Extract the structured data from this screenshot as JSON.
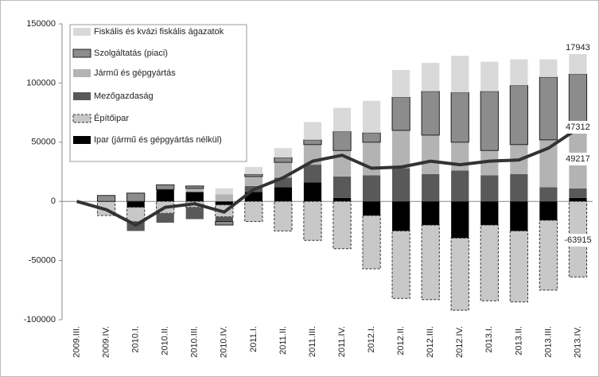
{
  "chart_data": {
    "type": "bar",
    "stacked": true,
    "categories": [
      "2009.III.",
      "2009.IV.",
      "2010.I.",
      "2010.II.",
      "2010.III.",
      "2010.IV.",
      "2011.I.",
      "2011.II.",
      "2011.III.",
      "2011.IV.",
      "2012.I.",
      "2012.II.",
      "2012.III.",
      "2012.IV.",
      "2013.I.",
      "2013.II.",
      "2013.III.",
      "2013.IV."
    ],
    "series": [
      {
        "name": "Fiskális és kvázi fiskális ágazatok",
        "color": "#d9d9d9",
        "values": [
          0,
          0,
          0,
          0,
          0,
          5000,
          6000,
          8000,
          15000,
          20000,
          27000,
          23000,
          24000,
          31000,
          25000,
          22000,
          15000,
          17943
        ]
      },
      {
        "name": "Szolgáltatás (piaci)",
        "color": "#8c8c8c",
        "values": [
          0,
          5000,
          7000,
          4000,
          2000,
          -3000,
          2000,
          4000,
          4000,
          16000,
          8000,
          28000,
          37000,
          42000,
          50000,
          50000,
          53000,
          47312
        ]
      },
      {
        "name": "Jármű és gépgyártás",
        "color": "#b3b3b3",
        "values": [
          0,
          0,
          0,
          0,
          3000,
          6000,
          8000,
          13000,
          17000,
          22000,
          28000,
          32000,
          33000,
          24000,
          21000,
          25000,
          40000,
          49217
        ]
      },
      {
        "name": "Mezőgazdaság",
        "color": "#595959",
        "values": [
          0,
          0,
          -8000,
          -8000,
          -10000,
          -4000,
          5000,
          8000,
          15000,
          18000,
          22000,
          28000,
          23000,
          26000,
          22000,
          23000,
          12000,
          8000
        ]
      },
      {
        "name": "Építőipar",
        "color": "#c8c8c8",
        "values": [
          0,
          -12000,
          -12000,
          -10000,
          -5000,
          -10000,
          -17000,
          -25000,
          -33000,
          -40000,
          -45000,
          -57000,
          -63000,
          -61000,
          -64000,
          -60000,
          -59000,
          -63915
        ]
      },
      {
        "name": "Ipar (jármű és gépgyártás nélkül)",
        "color": "#000000",
        "values": [
          0,
          0,
          -5000,
          10000,
          8000,
          -3000,
          8000,
          12000,
          16000,
          3000,
          -12000,
          -25000,
          -20000,
          -31000,
          -20000,
          -25000,
          -16000,
          3000
        ]
      }
    ],
    "line": {
      "color": "#333333",
      "values": [
        0,
        -7000,
        -20000,
        -5000,
        -2000,
        -9000,
        10000,
        20000,
        34000,
        39000,
        28000,
        29000,
        34000,
        31000,
        34000,
        35000,
        45000,
        61560
      ]
    },
    "ylim": [
      -100000,
      150000
    ],
    "yticks": [
      -100000,
      -50000,
      0,
      50000,
      100000,
      150000
    ],
    "grid": false
  }
}
